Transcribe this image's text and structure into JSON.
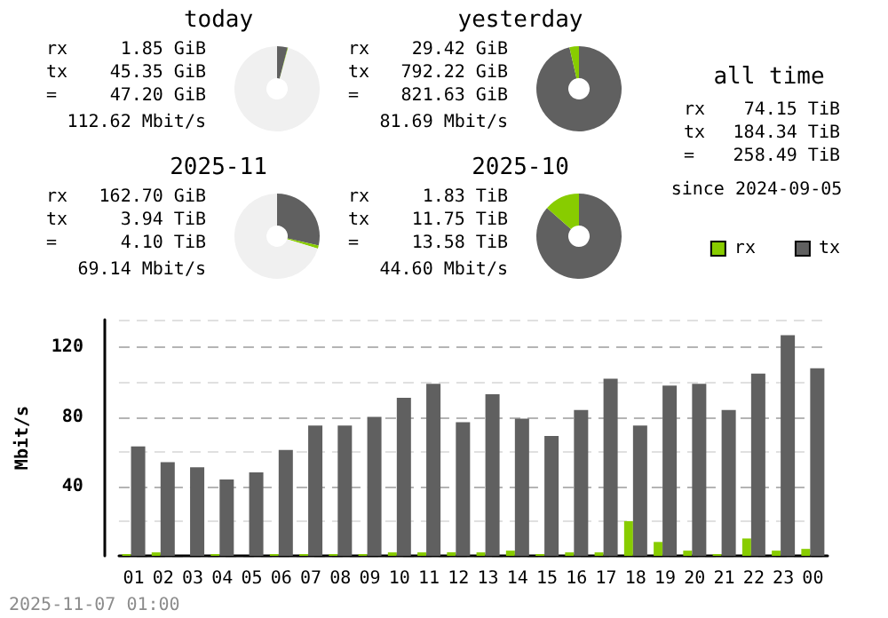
{
  "chart_data": [
    {
      "type": "donut",
      "title": "today",
      "categories": [
        null,
        null,
        null
      ],
      "values": [
        4.0,
        0.2,
        95.8
      ],
      "colors": [
        "#606060",
        "#88cc00",
        "#f0f0f0"
      ],
      "annotations": [
        "rx",
        "1.85 GiB",
        "tx",
        "45.35 GiB",
        "=",
        "47.20 GiB",
        "112.62 Mbit/s"
      ]
    },
    {
      "type": "donut",
      "title": "yesterday",
      "categories": [
        null,
        null
      ],
      "values": [
        96.4,
        3.6
      ],
      "colors": [
        "#606060",
        "#88cc00"
      ],
      "annotations": [
        "rx",
        "29.42 GiB",
        "tx",
        "792.22 GiB",
        "=",
        "821.63 GiB",
        "81.69 Mbit/s"
      ]
    },
    {
      "type": "donut",
      "title": "2025-11",
      "categories": [
        null,
        null,
        null
      ],
      "values": [
        28.5,
        1.2,
        70.3
      ],
      "colors": [
        "#606060",
        "#88cc00",
        "#f0f0f0"
      ],
      "annotations": [
        "rx",
        "162.70 GiB",
        "tx",
        "3.94 TiB",
        "=",
        "4.10 TiB",
        "69.14 Mbit/s"
      ]
    },
    {
      "type": "donut",
      "title": "2025-10",
      "categories": [
        null,
        null
      ],
      "values": [
        86.5,
        13.5
      ],
      "colors": [
        "#606060",
        "#88cc00"
      ],
      "annotations": [
        "rx",
        "1.83 TiB",
        "tx",
        "11.75 TiB",
        "=",
        "13.58 TiB",
        "44.60 Mbit/s"
      ]
    },
    {
      "type": "other",
      "title": "all time",
      "annotations": [
        "rx",
        "74.15 TiB",
        "tx",
        "184.34 TiB",
        "=",
        "258.49 TiB",
        "since 2024-09-05"
      ]
    },
    {
      "type": "bar",
      "ylabel": "Mbit/s",
      "categories": [
        "01",
        "02",
        "03",
        "04",
        "05",
        "06",
        "07",
        "08",
        "09",
        "10",
        "11",
        "12",
        "13",
        "14",
        "15",
        "16",
        "17",
        "18",
        "19",
        "20",
        "21",
        "22",
        "23",
        "00"
      ],
      "series": [
        {
          "name": "rx",
          "color": "#88cc00",
          "values": [
            1,
            2,
            0,
            1,
            0,
            1,
            1,
            1,
            1,
            2,
            2,
            2,
            2,
            3,
            1,
            2,
            2,
            20,
            8,
            3,
            1,
            10,
            3,
            4
          ]
        },
        {
          "name": "tx",
          "color": "#606060",
          "values": [
            63,
            54,
            51,
            44,
            48,
            61,
            75,
            75,
            80,
            91,
            99,
            77,
            93,
            79,
            69,
            84,
            102,
            75,
            98,
            99,
            84,
            105,
            127,
            108
          ]
        }
      ],
      "ylim": [
        0,
        136
      ],
      "yticks": [
        {
          "value": 0,
          "label": null
        },
        {
          "value": 20,
          "label": null
        },
        40,
        {
          "value": 60,
          "label": null
        },
        80,
        {
          "value": 100,
          "label": null
        },
        120
      ],
      "grid": "y",
      "legend": "top right",
      "annotations": [
        "2025-11-07 01:00"
      ]
    }
  ]
}
